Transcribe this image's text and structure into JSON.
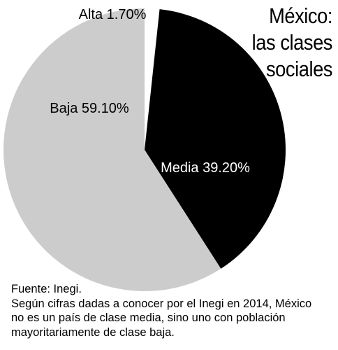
{
  "title_lines": [
    "México:",
    "las clases",
    "sociales"
  ],
  "chart_data": {
    "type": "pie",
    "title": "México: las clases sociales",
    "slices": [
      {
        "label": "Alta",
        "value": 1.7,
        "display": "Alta 1.70%",
        "color": "#ffffff"
      },
      {
        "label": "Media",
        "value": 39.2,
        "display": "Media 39.20%",
        "color": "#000000"
      },
      {
        "label": "Baja",
        "value": 59.1,
        "display": "Baja 59.10%",
        "color": "#cccccc"
      }
    ],
    "start_angle_deg": 0,
    "direction": "clockwise"
  },
  "footer": {
    "source": "Fuente: Inegi.",
    "note_lines": [
      "Según cifras dadas a conocer por el Inegi en 2014, México",
      "no es un país de clase media, sino uno con población",
      "mayoritariamente de clase baja."
    ]
  }
}
